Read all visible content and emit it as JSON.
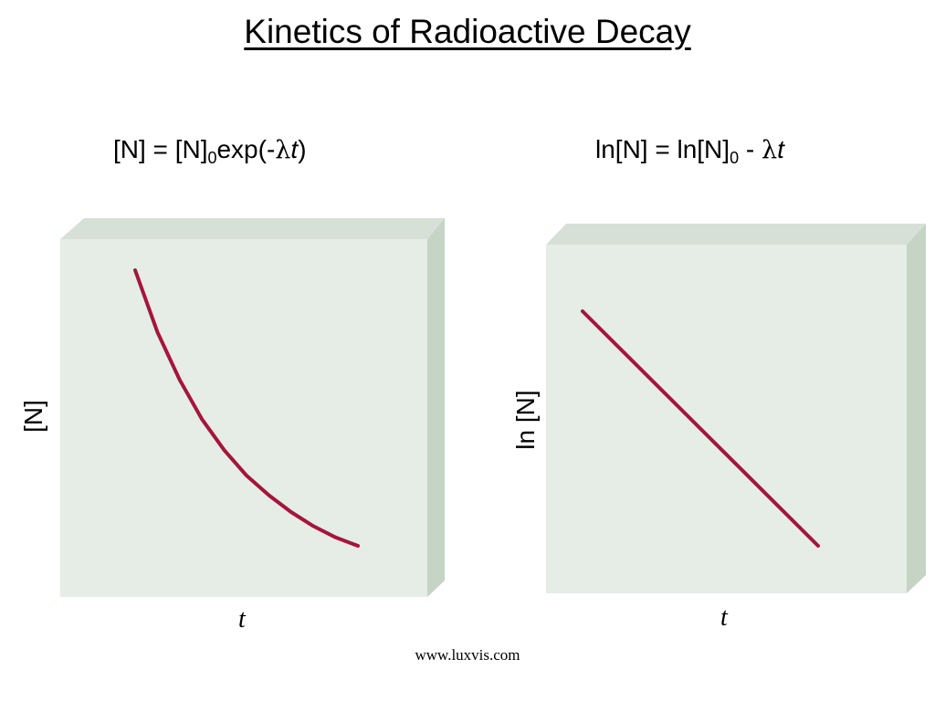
{
  "title": "Kinetics of Radioactive Decay",
  "footer": "www.luxvis.com",
  "colors": {
    "curve": "#a3163b",
    "panel_front": "#e6ece6",
    "panel_top": "#d7e0d7",
    "panel_side": "#c5d4c5"
  },
  "equations": {
    "left": {
      "a": "[N] = [N]",
      "sub": "0",
      "b": "exp(-",
      "lambda": "λ",
      "t": "t",
      "c": ")"
    },
    "right": {
      "a": "ln[N] = ln[N]",
      "sub": "0",
      "b": " - ",
      "lambda": "λ",
      "t": "t"
    }
  },
  "chart_data": [
    {
      "type": "line",
      "xlabel": "t",
      "ylabel": "[N]",
      "axes_numbered": false,
      "series": [
        {
          "x": [
            0,
            0.1,
            0.2,
            0.3,
            0.4,
            0.5,
            0.6,
            0.7,
            0.8,
            0.9,
            1.0
          ],
          "y": [
            1.0,
            0.78,
            0.61,
            0.47,
            0.36,
            0.27,
            0.2,
            0.14,
            0.09,
            0.05,
            0.02
          ],
          "color": "#a3163b"
        }
      ]
    },
    {
      "type": "line",
      "xlabel": "t",
      "ylabel": "ln [N]",
      "axes_numbered": false,
      "series": [
        {
          "x": [
            0,
            1
          ],
          "y": [
            1,
            0
          ],
          "color": "#a3163b"
        }
      ]
    }
  ]
}
